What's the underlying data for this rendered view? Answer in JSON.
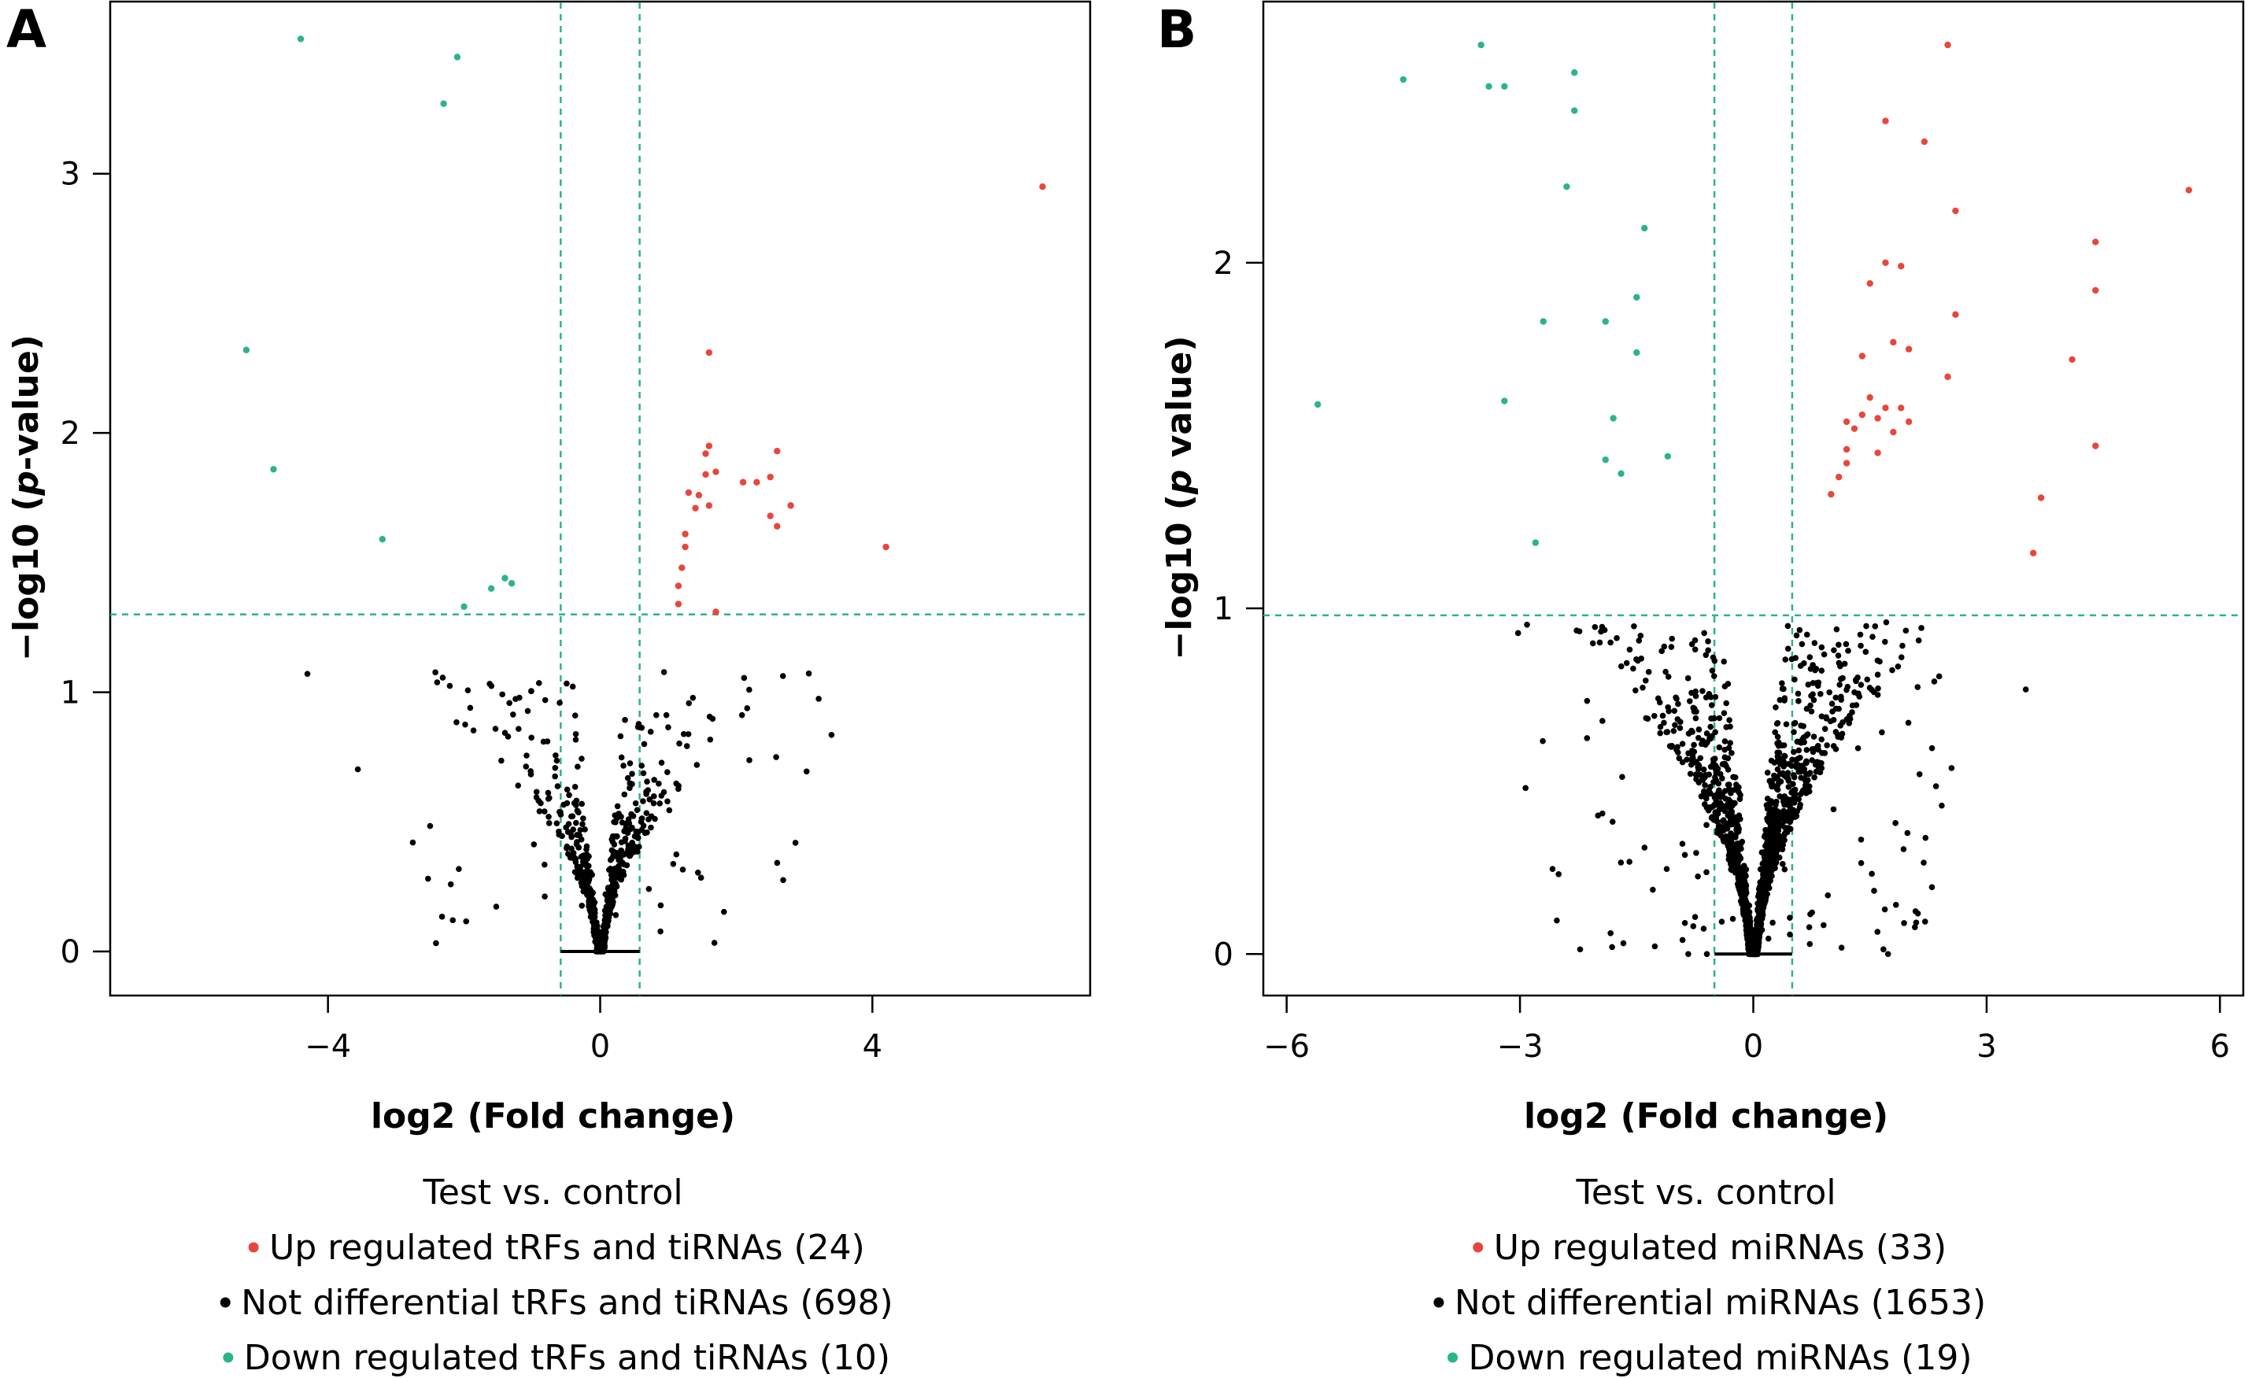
{
  "chart_data": [
    {
      "type": "scatter",
      "panel_label": "A",
      "xlabel": "log2 (Fold change)",
      "ylabel": "−log10 (p-value)",
      "ylabel_parts": [
        "−log10 (",
        "p",
        "-value)"
      ],
      "xlim": [
        -7.2,
        7.2
      ],
      "ylim": [
        -0.17,
        3.67
      ],
      "xticks": [
        -4,
        0,
        4
      ],
      "xtick_labels": [
        "−4",
        "0",
        "4"
      ],
      "yticks": [
        0,
        1,
        2,
        3
      ],
      "ytick_labels": [
        "0",
        "1",
        "2",
        "3"
      ],
      "thresholds": {
        "x": [
          -0.58,
          0.58
        ],
        "y": 1.3
      },
      "legend_title": "Test vs. control",
      "legend_placement": "bottom",
      "colors": {
        "up": "#e8463c",
        "not": "#000000",
        "down": "#2bb583"
      },
      "series": [
        {
          "key": "up",
          "name": "Up regulated tRFs and tiRNAs (24)",
          "points": [
            [
              6.5,
              2.95
            ],
            [
              1.6,
              2.31
            ],
            [
              1.6,
              1.95
            ],
            [
              1.55,
              1.92
            ],
            [
              1.55,
              1.84
            ],
            [
              1.7,
              1.85
            ],
            [
              2.6,
              1.93
            ],
            [
              2.5,
              1.83
            ],
            [
              2.1,
              1.81
            ],
            [
              2.3,
              1.81
            ],
            [
              1.3,
              1.77
            ],
            [
              1.45,
              1.76
            ],
            [
              1.6,
              1.72
            ],
            [
              1.4,
              1.71
            ],
            [
              2.8,
              1.72
            ],
            [
              2.5,
              1.68
            ],
            [
              2.6,
              1.64
            ],
            [
              1.25,
              1.61
            ],
            [
              1.25,
              1.56
            ],
            [
              4.2,
              1.56
            ],
            [
              1.2,
              1.48
            ],
            [
              1.15,
              1.41
            ],
            [
              1.15,
              1.34
            ],
            [
              1.7,
              1.31
            ]
          ]
        },
        {
          "key": "down",
          "name": "Down regulated tRFs and tiRNAs (10)",
          "points": [
            [
              -4.4,
              3.52
            ],
            [
              -2.1,
              3.45
            ],
            [
              -2.3,
              3.27
            ],
            [
              -5.2,
              2.32
            ],
            [
              -4.8,
              1.86
            ],
            [
              -3.2,
              1.59
            ],
            [
              -1.4,
              1.44
            ],
            [
              -1.3,
              1.42
            ],
            [
              -1.6,
              1.4
            ],
            [
              -2.0,
              1.33
            ]
          ]
        },
        {
          "key": "not",
          "name": "Not differential tRFs and tiRNAs (698)",
          "count": 698
        }
      ]
    },
    {
      "type": "scatter",
      "panel_label": "B",
      "xlabel": "log2 (Fold change)",
      "ylabel": "−log10 (p value)",
      "ylabel_parts": [
        "−log10 (",
        "p",
        " value)"
      ],
      "xlim": [
        -6.3,
        6.3
      ],
      "ylim": [
        -0.12,
        2.76
      ],
      "xticks": [
        -6,
        -3,
        0,
        3,
        6
      ],
      "xtick_labels": [
        "−6",
        "−3",
        "0",
        "3",
        "6"
      ],
      "yticks": [
        0,
        1,
        2
      ],
      "ytick_labels": [
        "0",
        "1",
        "2"
      ],
      "thresholds": {
        "x": [
          -0.5,
          0.5
        ],
        "y": 0.98
      },
      "legend_title": "Test vs. control",
      "legend_placement": "bottom",
      "colors": {
        "up": "#e8463c",
        "not": "#000000",
        "down": "#2bb583"
      },
      "series": [
        {
          "key": "up",
          "name": "Up regulated miRNAs (33)",
          "points": [
            [
              2.5,
              2.63
            ],
            [
              5.6,
              2.21
            ],
            [
              2.6,
              2.15
            ],
            [
              1.7,
              2.41
            ],
            [
              2.2,
              2.35
            ],
            [
              4.4,
              2.06
            ],
            [
              1.7,
              2.0
            ],
            [
              1.9,
              1.99
            ],
            [
              1.5,
              1.94
            ],
            [
              2.6,
              1.85
            ],
            [
              4.4,
              1.92
            ],
            [
              1.8,
              1.77
            ],
            [
              2.0,
              1.75
            ],
            [
              1.4,
              1.73
            ],
            [
              4.1,
              1.72
            ],
            [
              2.5,
              1.67
            ],
            [
              1.5,
              1.61
            ],
            [
              1.7,
              1.58
            ],
            [
              1.9,
              1.58
            ],
            [
              1.4,
              1.56
            ],
            [
              1.6,
              1.55
            ],
            [
              1.2,
              1.54
            ],
            [
              2.0,
              1.54
            ],
            [
              1.3,
              1.52
            ],
            [
              1.8,
              1.51
            ],
            [
              4.4,
              1.47
            ],
            [
              1.2,
              1.46
            ],
            [
              1.6,
              1.45
            ],
            [
              1.2,
              1.42
            ],
            [
              1.1,
              1.38
            ],
            [
              1.0,
              1.33
            ],
            [
              3.7,
              1.32
            ],
            [
              3.6,
              1.16
            ]
          ]
        },
        {
          "key": "down",
          "name": "Down regulated miRNAs (19)",
          "points": [
            [
              -3.5,
              2.63
            ],
            [
              -4.5,
              2.53
            ],
            [
              -3.4,
              2.51
            ],
            [
              -3.2,
              2.51
            ],
            [
              -2.3,
              2.55
            ],
            [
              -2.3,
              2.44
            ],
            [
              -2.4,
              2.22
            ],
            [
              -1.4,
              2.1
            ],
            [
              -1.5,
              1.9
            ],
            [
              -2.7,
              1.83
            ],
            [
              -1.9,
              1.83
            ],
            [
              -1.5,
              1.74
            ],
            [
              -5.6,
              1.59
            ],
            [
              -3.2,
              1.6
            ],
            [
              -1.8,
              1.55
            ],
            [
              -1.1,
              1.44
            ],
            [
              -1.9,
              1.43
            ],
            [
              -1.7,
              1.39
            ],
            [
              -2.8,
              1.19
            ]
          ]
        },
        {
          "key": "not",
          "name": "Not differential miRNAs (1653)",
          "count": 1653
        }
      ]
    }
  ]
}
